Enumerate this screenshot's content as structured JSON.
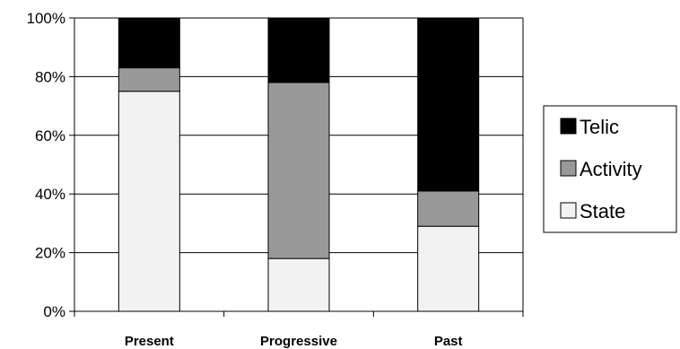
{
  "chart_data": {
    "type": "bar",
    "stacked": true,
    "normalized": true,
    "categories": [
      "Present",
      "Progressive",
      "Past"
    ],
    "series": [
      {
        "name": "State",
        "values": [
          75,
          18,
          29
        ]
      },
      {
        "name": "Activity",
        "values": [
          8,
          60,
          12
        ]
      },
      {
        "name": "Telic",
        "values": [
          17,
          22,
          59
        ]
      }
    ],
    "ylim": [
      0,
      100
    ],
    "yticks": [
      "0%",
      "20%",
      "40%",
      "60%",
      "80%",
      "100%"
    ],
    "grid": true,
    "legend": "right",
    "legend_order": [
      "Telic",
      "Activity",
      "State"
    ],
    "colors": {
      "State": "#f2f2f2",
      "Activity": "#999999",
      "Telic": "#000000",
      "axis": "#000000",
      "gridline": "#000000"
    }
  }
}
